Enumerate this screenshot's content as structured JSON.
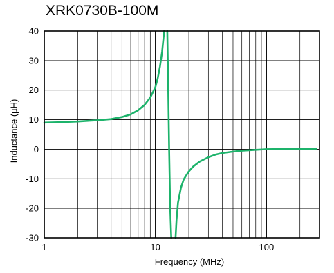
{
  "chart_data": {
    "type": "line",
    "title": "XRK0730B-100M",
    "xlabel": "Frequency (MHz)",
    "ylabel": "Inductance (µH)",
    "x_scale": "log",
    "xlim": [
      1,
      300
    ],
    "ylim": [
      -30,
      40
    ],
    "x_ticks": [
      1,
      10,
      100
    ],
    "x_tick_labels": [
      "1",
      "10",
      "100"
    ],
    "y_ticks": [
      -30,
      -20,
      -10,
      0,
      10,
      20,
      30,
      40
    ],
    "y_tick_labels": [
      "-30",
      "-20",
      "-10",
      "0",
      "10",
      "20",
      "30",
      "40"
    ],
    "grid": true,
    "legend": "none",
    "colors": {
      "line": "#1db36b",
      "grid": "#000000"
    },
    "series": [
      {
        "branches": [
          [
            [
              1,
              9.0
            ],
            [
              1.5,
              9.2
            ],
            [
              2,
              9.4
            ],
            [
              3,
              9.8
            ],
            [
              4,
              10.2
            ],
            [
              5,
              10.9
            ],
            [
              6,
              11.8
            ],
            [
              7,
              13.2
            ],
            [
              8,
              15.0
            ],
            [
              9,
              17.5
            ],
            [
              10,
              21.0
            ],
            [
              10.5,
              24.0
            ],
            [
              11,
              28.0
            ],
            [
              11.5,
              33.0
            ],
            [
              12,
              40.0
            ]
          ],
          [
            [
              12.8,
              40.0
            ],
            [
              13.0,
              25.0
            ],
            [
              13.3,
              0.0
            ],
            [
              13.6,
              -20.0
            ],
            [
              13.9,
              -30.0
            ]
          ],
          [
            [
              15.2,
              -30.0
            ],
            [
              15.5,
              -24.0
            ],
            [
              16,
              -18.0
            ],
            [
              17,
              -13.0
            ],
            [
              18,
              -10.2
            ],
            [
              20,
              -7.5
            ],
            [
              22,
              -5.8
            ],
            [
              25,
              -4.2
            ],
            [
              30,
              -2.7
            ],
            [
              35,
              -1.8
            ],
            [
              40,
              -1.3
            ],
            [
              50,
              -0.8
            ],
            [
              60,
              -0.5
            ],
            [
              80,
              -0.2
            ],
            [
              100,
              0.0
            ],
            [
              150,
              0.1
            ],
            [
              200,
              0.1
            ],
            [
              280,
              0.2
            ]
          ]
        ]
      }
    ]
  }
}
